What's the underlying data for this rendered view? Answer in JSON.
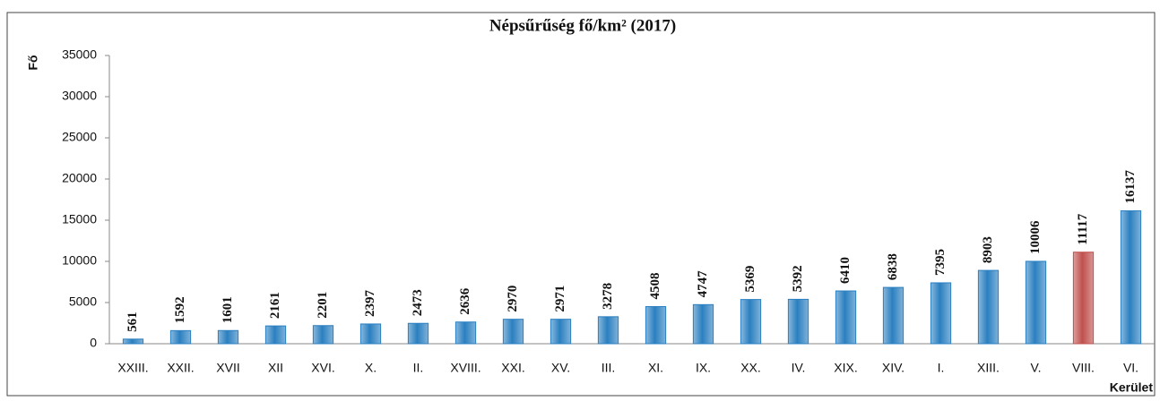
{
  "chart_data": {
    "type": "bar",
    "title": "Népsűrűség fő/km² (2017)",
    "y_label": "Fő",
    "x_label": "Kerület",
    "categories": [
      "XXIII.",
      "XXII.",
      "XVII",
      "XII",
      "XVI.",
      "X.",
      "II.",
      "XVIII.",
      "XXI.",
      "XV.",
      "III.",
      "XI.",
      "IX.",
      "XX.",
      "IV.",
      "XIX.",
      "XIV.",
      "I.",
      "XIII.",
      "V.",
      "VIII.",
      "VI."
    ],
    "values": [
      561,
      1592,
      1601,
      2161,
      2201,
      2397,
      2473,
      2636,
      2970,
      2971,
      3278,
      4508,
      4747,
      5369,
      5392,
      6410,
      6838,
      7395,
      8903,
      10006,
      11117,
      16137
    ],
    "colors": [
      "#2a7fc0",
      "#2a7fc0",
      "#2a7fc0",
      "#2a7fc0",
      "#2a7fc0",
      "#2a7fc0",
      "#2a7fc0",
      "#2a7fc0",
      "#2a7fc0",
      "#2a7fc0",
      "#2a7fc0",
      "#2a7fc0",
      "#2a7fc0",
      "#2a7fc0",
      "#2a7fc0",
      "#2a7fc0",
      "#2a7fc0",
      "#2a7fc0",
      "#2a7fc0",
      "#2a7fc0",
      "#c0504d",
      "#2a7fc0"
    ],
    "ylim": [
      0,
      35000
    ],
    "yticks": [
      0,
      5000,
      10000,
      15000,
      20000,
      25000,
      30000,
      35000
    ]
  }
}
